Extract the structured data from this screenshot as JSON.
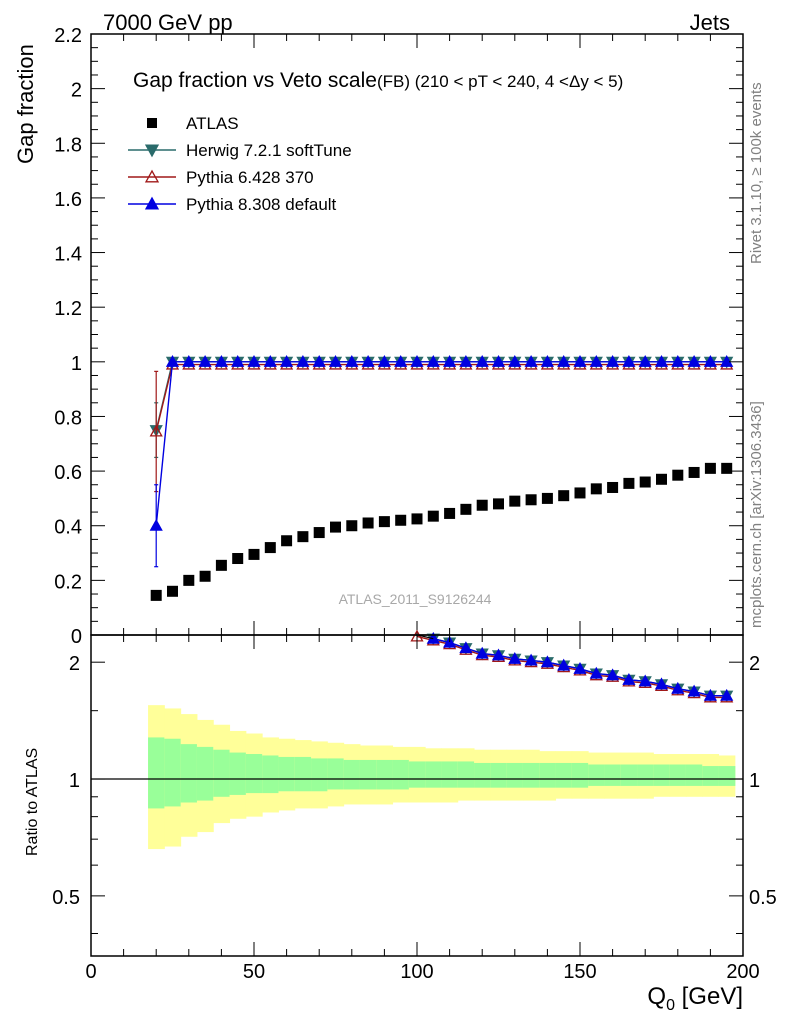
{
  "header": {
    "left": "7000 GeV pp",
    "right": "Jets",
    "side_rivet": "Rivet 3.1.10, ≥ 100k events",
    "side_mcplots": "mcplots.cern.ch [arXiv:1306.3436]",
    "watermark": "ATLAS_2011_S9126244"
  },
  "chart_data": {
    "type": "scatter",
    "title": "Gap fraction vs Veto scale",
    "subtitle": "(FB) (210 < pT < 240, 4 <Δy < 5)",
    "xlabel": "Q",
    "xlabel_sub": "0",
    "xlabel_unit": " [GeV]",
    "ylabel": "Gap fraction",
    "ratio_ylabel": "Ratio to ATLAS",
    "xlim": [
      0,
      200
    ],
    "ylim": [
      0,
      2.2
    ],
    "ratio_ylim": [
      0.35,
      2.35
    ],
    "ratio_log_scale": true,
    "x_ticks": [
      0,
      50,
      100,
      150,
      200
    ],
    "y_ticks": [
      0,
      0.2,
      0.4,
      0.6,
      0.8,
      1,
      1.2,
      1.4,
      1.6,
      1.8,
      2,
      2.2
    ],
    "y_tick_labels": [
      "0",
      "0.2",
      "0.4",
      "0.6",
      "0.8",
      "1",
      "1.2",
      "1.4",
      "1.6",
      "1.8",
      "2",
      "2.2"
    ],
    "ratio_ticks": [
      0.5,
      1,
      2
    ],
    "ratio_tick_labels": [
      "0.5",
      "1",
      "2"
    ],
    "legend_position": "top-left",
    "x": [
      20,
      25,
      30,
      35,
      40,
      45,
      50,
      55,
      60,
      65,
      70,
      75,
      80,
      85,
      90,
      95,
      100,
      105,
      110,
      115,
      120,
      125,
      130,
      135,
      140,
      145,
      150,
      155,
      160,
      165,
      170,
      175,
      180,
      185,
      190,
      195
    ],
    "series": [
      {
        "name": "ATLAS",
        "color": "#000000",
        "marker": "square",
        "values": [
          0.145,
          0.16,
          0.2,
          0.215,
          0.255,
          0.28,
          0.295,
          0.32,
          0.345,
          0.36,
          0.375,
          0.395,
          0.4,
          0.41,
          0.415,
          0.42,
          0.425,
          0.435,
          0.445,
          0.46,
          0.475,
          0.48,
          0.49,
          0.495,
          0.5,
          0.51,
          0.52,
          0.535,
          0.54,
          0.555,
          0.56,
          0.57,
          0.585,
          0.595,
          0.61,
          0.61
        ]
      },
      {
        "name": "Herwig 7.2.1 softTune",
        "color": "#2a6b6b",
        "marker": "triangle-down",
        "values": [
          0.75,
          1,
          1,
          1,
          1,
          1,
          1,
          1,
          1,
          1,
          1,
          1,
          1,
          1,
          1,
          1,
          1,
          1,
          1,
          1,
          1,
          1,
          1,
          1,
          1,
          1,
          1,
          1,
          1,
          1,
          1,
          1,
          1,
          1,
          1,
          1
        ],
        "errors": [
          0.1,
          0,
          0,
          0,
          0,
          0,
          0,
          0,
          0,
          0,
          0,
          0,
          0,
          0,
          0,
          0,
          0,
          0,
          0,
          0,
          0,
          0,
          0,
          0,
          0,
          0,
          0,
          0,
          0,
          0,
          0,
          0,
          0,
          0,
          0,
          0
        ]
      },
      {
        "name": "Pythia 6.428 370",
        "color": "#a01818",
        "marker": "triangle-open",
        "values": [
          0.745,
          0.99,
          0.99,
          0.99,
          0.99,
          0.99,
          0.99,
          0.99,
          0.99,
          0.99,
          0.99,
          0.99,
          0.99,
          0.99,
          0.99,
          0.99,
          0.99,
          0.99,
          0.99,
          0.99,
          0.99,
          0.99,
          0.99,
          0.99,
          0.99,
          0.99,
          0.99,
          0.99,
          0.99,
          0.99,
          0.99,
          0.99,
          0.99,
          0.99,
          0.99,
          0.99
        ],
        "errors": [
          0.22,
          0,
          0,
          0,
          0,
          0,
          0,
          0,
          0,
          0,
          0,
          0,
          0,
          0,
          0,
          0,
          0,
          0,
          0,
          0,
          0,
          0,
          0,
          0,
          0,
          0,
          0,
          0,
          0,
          0,
          0,
          0,
          0,
          0,
          0,
          0
        ]
      },
      {
        "name": "Pythia 8.308 default",
        "color": "#0000e0",
        "marker": "triangle-up",
        "values": [
          0.4,
          1,
          1,
          1,
          1,
          1,
          1,
          1,
          1,
          1,
          1,
          1,
          1,
          1,
          1,
          1,
          1,
          1,
          1,
          1,
          1,
          1,
          1,
          1,
          1,
          1,
          1,
          1,
          1,
          1,
          1,
          1,
          1,
          1,
          1,
          1
        ],
        "errors": [
          0.15,
          0,
          0,
          0,
          0,
          0,
          0,
          0,
          0,
          0,
          0,
          0,
          0,
          0,
          0,
          0,
          0,
          0,
          0,
          0,
          0,
          0,
          0,
          0,
          0,
          0,
          0,
          0,
          0,
          0,
          0,
          0,
          0,
          0,
          0,
          0
        ]
      }
    ],
    "ratio_band_x": [
      [
        17.5,
        22.5
      ],
      [
        22.5,
        27.5
      ],
      [
        27.5,
        32.5
      ],
      [
        32.5,
        37.5
      ],
      [
        37.5,
        42.5
      ],
      [
        42.5,
        47.5
      ],
      [
        47.5,
        52.5
      ],
      [
        52.5,
        57.5
      ],
      [
        57.5,
        62.5
      ],
      [
        62.5,
        67.5
      ],
      [
        67.5,
        72.5
      ],
      [
        72.5,
        77.5
      ],
      [
        77.5,
        82.5
      ],
      [
        82.5,
        87.5
      ],
      [
        87.5,
        92.5
      ],
      [
        92.5,
        97.5
      ],
      [
        97.5,
        102.5
      ],
      [
        102.5,
        107.5
      ],
      [
        107.5,
        112.5
      ],
      [
        112.5,
        117.5
      ],
      [
        117.5,
        122.5
      ],
      [
        122.5,
        127.5
      ],
      [
        127.5,
        132.5
      ],
      [
        132.5,
        137.5
      ],
      [
        137.5,
        142.5
      ],
      [
        142.5,
        147.5
      ],
      [
        147.5,
        152.5
      ],
      [
        152.5,
        157.5
      ],
      [
        157.5,
        162.5
      ],
      [
        162.5,
        167.5
      ],
      [
        167.5,
        172.5
      ],
      [
        172.5,
        177.5
      ],
      [
        177.5,
        182.5
      ],
      [
        182.5,
        187.5
      ],
      [
        187.5,
        192.5
      ],
      [
        192.5,
        197.5
      ]
    ],
    "ratio_band_yellow": [
      [
        0.66,
        1.55
      ],
      [
        0.67,
        1.52
      ],
      [
        0.71,
        1.47
      ],
      [
        0.73,
        1.42
      ],
      [
        0.77,
        1.38
      ],
      [
        0.79,
        1.33
      ],
      [
        0.8,
        1.31
      ],
      [
        0.82,
        1.28
      ],
      [
        0.83,
        1.27
      ],
      [
        0.84,
        1.26
      ],
      [
        0.84,
        1.25
      ],
      [
        0.85,
        1.24
      ],
      [
        0.86,
        1.23
      ],
      [
        0.86,
        1.22
      ],
      [
        0.86,
        1.22
      ],
      [
        0.87,
        1.21
      ],
      [
        0.87,
        1.21
      ],
      [
        0.87,
        1.2
      ],
      [
        0.87,
        1.2
      ],
      [
        0.88,
        1.2
      ],
      [
        0.88,
        1.19
      ],
      [
        0.88,
        1.19
      ],
      [
        0.88,
        1.19
      ],
      [
        0.88,
        1.19
      ],
      [
        0.88,
        1.18
      ],
      [
        0.89,
        1.18
      ],
      [
        0.89,
        1.18
      ],
      [
        0.89,
        1.17
      ],
      [
        0.89,
        1.17
      ],
      [
        0.89,
        1.17
      ],
      [
        0.89,
        1.17
      ],
      [
        0.9,
        1.16
      ],
      [
        0.9,
        1.16
      ],
      [
        0.9,
        1.16
      ],
      [
        0.9,
        1.16
      ],
      [
        0.9,
        1.15
      ]
    ],
    "ratio_band_green": [
      [
        0.84,
        1.28
      ],
      [
        0.85,
        1.27
      ],
      [
        0.87,
        1.23
      ],
      [
        0.88,
        1.21
      ],
      [
        0.9,
        1.19
      ],
      [
        0.91,
        1.17
      ],
      [
        0.92,
        1.16
      ],
      [
        0.92,
        1.15
      ],
      [
        0.93,
        1.14
      ],
      [
        0.93,
        1.14
      ],
      [
        0.93,
        1.13
      ],
      [
        0.94,
        1.13
      ],
      [
        0.94,
        1.12
      ],
      [
        0.94,
        1.12
      ],
      [
        0.94,
        1.12
      ],
      [
        0.94,
        1.12
      ],
      [
        0.95,
        1.11
      ],
      [
        0.95,
        1.11
      ],
      [
        0.95,
        1.11
      ],
      [
        0.95,
        1.11
      ],
      [
        0.95,
        1.1
      ],
      [
        0.95,
        1.1
      ],
      [
        0.95,
        1.1
      ],
      [
        0.95,
        1.1
      ],
      [
        0.95,
        1.1
      ],
      [
        0.95,
        1.1
      ],
      [
        0.95,
        1.1
      ],
      [
        0.96,
        1.09
      ],
      [
        0.96,
        1.09
      ],
      [
        0.96,
        1.09
      ],
      [
        0.96,
        1.09
      ],
      [
        0.96,
        1.09
      ],
      [
        0.96,
        1.09
      ],
      [
        0.96,
        1.09
      ],
      [
        0.96,
        1.08
      ],
      [
        0.96,
        1.08
      ]
    ]
  }
}
